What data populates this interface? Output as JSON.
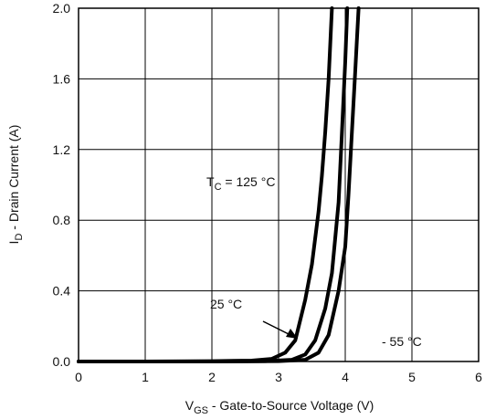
{
  "chart_data": {
    "type": "line",
    "xlim": [
      0,
      6
    ],
    "ylim": [
      0,
      2.0
    ],
    "x_ticks": [
      "0",
      "1",
      "2",
      "3",
      "4",
      "5",
      "6"
    ],
    "y_ticks": [
      "0.0",
      "0.4",
      "0.8",
      "1.2",
      "1.6",
      "2.0"
    ],
    "grid": true,
    "xlabel": {
      "main": "V",
      "sub": "GS",
      "rest": " - Gate-to-Source Voltage (V)"
    },
    "ylabel": {
      "main": "I",
      "sub": "D",
      "rest": " - Drain Current (A)"
    },
    "series": [
      {
        "points": [
          [
            0,
            0
          ],
          [
            1,
            0
          ],
          [
            2,
            0.002
          ],
          [
            2.6,
            0.005
          ],
          [
            2.9,
            0.015
          ],
          [
            3.1,
            0.05
          ],
          [
            3.25,
            0.12
          ],
          [
            3.4,
            0.35
          ],
          [
            3.5,
            0.55
          ],
          [
            3.6,
            0.85
          ],
          [
            3.65,
            1.05
          ],
          [
            3.7,
            1.3
          ],
          [
            3.75,
            1.6
          ],
          [
            3.8,
            2.0
          ]
        ]
      },
      {
        "points": [
          [
            0,
            0
          ],
          [
            2,
            0
          ],
          [
            2.8,
            0.002
          ],
          [
            3.2,
            0.01
          ],
          [
            3.4,
            0.04
          ],
          [
            3.55,
            0.12
          ],
          [
            3.7,
            0.3
          ],
          [
            3.8,
            0.5
          ],
          [
            3.9,
            0.9
          ],
          [
            3.95,
            1.3
          ],
          [
            4.0,
            1.7
          ],
          [
            4.03,
            2.0
          ]
        ]
      },
      {
        "points": [
          [
            0,
            0
          ],
          [
            2,
            0
          ],
          [
            3,
            0.002
          ],
          [
            3.4,
            0.01
          ],
          [
            3.6,
            0.05
          ],
          [
            3.75,
            0.15
          ],
          [
            3.9,
            0.4
          ],
          [
            4.0,
            0.65
          ],
          [
            4.05,
            0.95
          ],
          [
            4.1,
            1.3
          ],
          [
            4.15,
            1.65
          ],
          [
            4.2,
            2.0
          ]
        ]
      }
    ],
    "annotations": [
      {
        "main": "T",
        "sub": "C",
        "rest": " = 125 °C"
      },
      {
        "text": "25 °C"
      },
      {
        "text": "- 55 °C"
      }
    ]
  }
}
